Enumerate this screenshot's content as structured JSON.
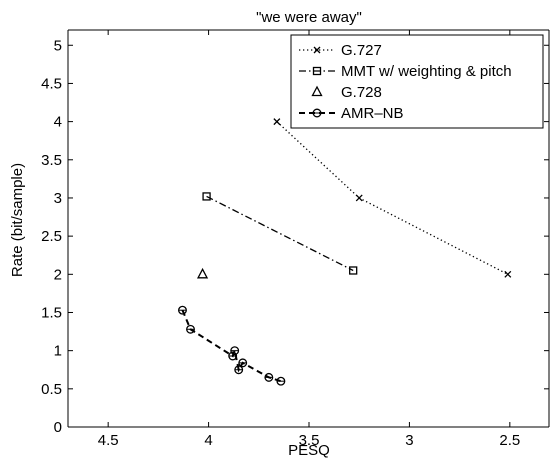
{
  "chart_data": {
    "type": "line",
    "title": "\"we were away\"",
    "xlabel": "PESQ",
    "ylabel": "Rate (bit/sample)",
    "xlim": [
      4.7,
      2.3
    ],
    "ylim": [
      0,
      5.2
    ],
    "x_reversed": true,
    "xticks": [
      4.5,
      4,
      3.5,
      3,
      2.5
    ],
    "xtick_labels": [
      "4.5",
      "4",
      "3.5",
      "3",
      "2.5"
    ],
    "yticks": [
      0,
      0.5,
      1,
      1.5,
      2,
      2.5,
      3,
      3.5,
      4,
      4.5,
      5
    ],
    "ytick_labels": [
      "0",
      "0.5",
      "1",
      "1.5",
      "2",
      "2.5",
      "3",
      "3.5",
      "4",
      "4.5",
      "5"
    ],
    "grid": false,
    "legend_position": "top-right",
    "series": [
      {
        "name": "G.727",
        "line_style": "dotted",
        "marker": "x",
        "x": [
          3.66,
          3.25,
          2.51
        ],
        "y": [
          4.0,
          3.0,
          2.0
        ]
      },
      {
        "name": "MMT w/ weighting & pitch",
        "line_style": "dashdot",
        "marker": "square",
        "x": [
          4.01,
          3.28
        ],
        "y": [
          3.02,
          2.05
        ]
      },
      {
        "name": "G.728",
        "line_style": "none",
        "marker": "triangle",
        "x": [
          4.03
        ],
        "y": [
          2.0
        ]
      },
      {
        "name": "AMR–NB",
        "line_style": "dashed",
        "marker": "circle",
        "x": [
          4.13,
          4.09,
          3.88,
          3.87,
          3.85,
          3.83,
          3.7,
          3.64
        ],
        "y": [
          1.53,
          1.28,
          0.93,
          1.0,
          0.75,
          0.84,
          0.65,
          0.6
        ]
      }
    ]
  }
}
